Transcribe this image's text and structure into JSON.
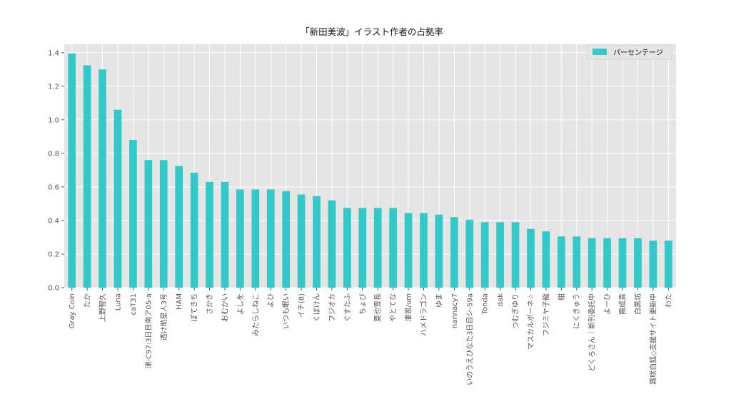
{
  "chart_data": {
    "type": "bar",
    "title": "「新田美波」イラスト作者の占拠率",
    "xlabel": "",
    "ylabel": "",
    "ylim": [
      0,
      1.45
    ],
    "yticks": [
      "0.0",
      "0.2",
      "0.4",
      "0.6",
      "0.8",
      "1.0",
      "1.2",
      "1.4"
    ],
    "grid": true,
    "legend_position": "top-right",
    "categories": [
      "Gray Coin",
      "たか",
      "上野智久",
      "Luna",
      "caT31",
      "涕-C97:3日目南ア05-a",
      "透け助星人3号",
      "HAM",
      "ぽてきち",
      "さかき",
      "おむかい",
      "よしを",
      "みたらしねこ",
      "よひ",
      "いつも眠い",
      "イチ(8)",
      "くぼけん",
      "フジオカ",
      "ぐすたふ",
      "ちょび",
      "夏也雪長",
      "やとてな",
      "潘恩/um",
      "ハメドラゴン",
      "ゆま",
      "nannacy7",
      "いのうえひなた3日目シ-59a",
      "Tonda",
      "dak",
      "つむぎゆり",
      "マスカルポーネ☆",
      "フジミヤ子龍",
      "紺",
      "にくきゅう",
      "どくろさん｜新刊委託中",
      "よーひ",
      "霞成貴",
      "白黒坊",
      "霧咲白狐◇支援サイト更新中",
      "わた"
    ],
    "series": [
      {
        "name": "パーセンテージ",
        "color": "#33c9c9",
        "values": [
          1.395,
          1.325,
          1.3,
          1.06,
          0.88,
          0.76,
          0.76,
          0.725,
          0.685,
          0.63,
          0.63,
          0.585,
          0.585,
          0.585,
          0.575,
          0.555,
          0.545,
          0.52,
          0.475,
          0.475,
          0.475,
          0.475,
          0.445,
          0.445,
          0.435,
          0.42,
          0.405,
          0.39,
          0.39,
          0.39,
          0.35,
          0.335,
          0.305,
          0.305,
          0.295,
          0.295,
          0.295,
          0.295,
          0.28,
          0.28
        ]
      }
    ]
  }
}
